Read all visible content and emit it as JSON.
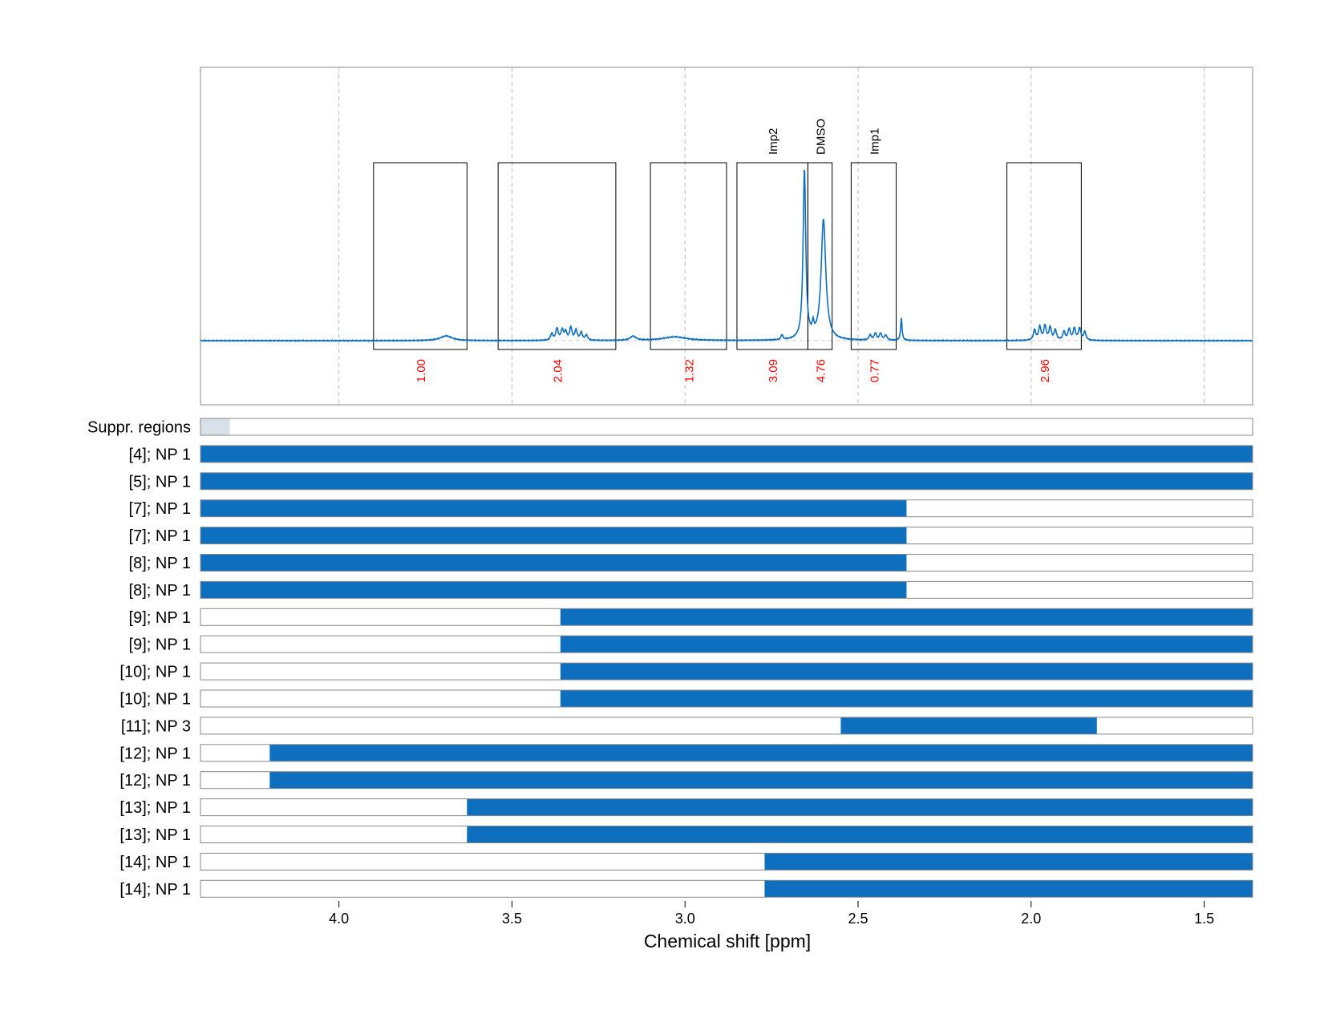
{
  "chart_data": {
    "type": "line",
    "xlabel": "Chemical shift [ppm]",
    "x_reversed": true,
    "xlim": [
      4.4,
      1.36
    ],
    "x_ticks": [
      4.0,
      3.5,
      3.0,
      2.5,
      2.0,
      1.5
    ],
    "x_tick_labels": [
      "4.0",
      "3.5",
      "3.0",
      "2.5",
      "2.0",
      "1.5"
    ],
    "grid": "vertical-dashed",
    "series_color": "#0f6fbf",
    "spectrum_peaks": [
      {
        "ppm": 3.69,
        "height": 0.028,
        "width": 0.02
      },
      {
        "ppm": 3.385,
        "height": 0.04,
        "width": 0.004
      },
      {
        "ppm": 3.37,
        "height": 0.07,
        "width": 0.004
      },
      {
        "ppm": 3.355,
        "height": 0.06,
        "width": 0.004
      },
      {
        "ppm": 3.345,
        "height": 0.05,
        "width": 0.004
      },
      {
        "ppm": 3.33,
        "height": 0.075,
        "width": 0.004
      },
      {
        "ppm": 3.315,
        "height": 0.06,
        "width": 0.004
      },
      {
        "ppm": 3.3,
        "height": 0.045,
        "width": 0.004
      },
      {
        "ppm": 3.285,
        "height": 0.03,
        "width": 0.004
      },
      {
        "ppm": 3.15,
        "height": 0.025,
        "width": 0.01
      },
      {
        "ppm": 3.03,
        "height": 0.022,
        "width": 0.04
      },
      {
        "ppm": 2.72,
        "height": 0.03,
        "width": 0.003
      },
      {
        "ppm": 2.655,
        "height": 1.0,
        "width": 0.0045
      },
      {
        "ppm": 2.63,
        "height": 0.06,
        "width": 0.003
      },
      {
        "ppm": 2.6,
        "height": 0.71,
        "width": 0.008
      },
      {
        "ppm": 2.465,
        "height": 0.03,
        "width": 0.004
      },
      {
        "ppm": 2.45,
        "height": 0.04,
        "width": 0.004
      },
      {
        "ppm": 2.435,
        "height": 0.04,
        "width": 0.004
      },
      {
        "ppm": 2.42,
        "height": 0.03,
        "width": 0.004
      },
      {
        "ppm": 2.375,
        "height": 0.13,
        "width": 0.0025
      },
      {
        "ppm": 1.99,
        "height": 0.06,
        "width": 0.004
      },
      {
        "ppm": 1.975,
        "height": 0.08,
        "width": 0.004
      },
      {
        "ppm": 1.96,
        "height": 0.085,
        "width": 0.004
      },
      {
        "ppm": 1.945,
        "height": 0.075,
        "width": 0.004
      },
      {
        "ppm": 1.93,
        "height": 0.06,
        "width": 0.004
      },
      {
        "ppm": 1.905,
        "height": 0.05,
        "width": 0.004
      },
      {
        "ppm": 1.89,
        "height": 0.065,
        "width": 0.004
      },
      {
        "ppm": 1.875,
        "height": 0.07,
        "width": 0.004
      },
      {
        "ppm": 1.86,
        "height": 0.07,
        "width": 0.004
      },
      {
        "ppm": 1.845,
        "height": 0.05,
        "width": 0.004
      }
    ],
    "integration_regions": [
      {
        "start": 3.9,
        "end": 3.63,
        "value": "1.00",
        "label": ""
      },
      {
        "start": 3.54,
        "end": 3.2,
        "value": "2.04",
        "label": ""
      },
      {
        "start": 3.1,
        "end": 2.88,
        "value": "1.32",
        "label": ""
      },
      {
        "start": 2.85,
        "end": 2.645,
        "value": "3.09",
        "label": "Imp2"
      },
      {
        "start": 2.645,
        "end": 2.575,
        "value": "4.76",
        "label": "DMSO"
      },
      {
        "start": 2.52,
        "end": 2.39,
        "value": "0.77",
        "label": "Imp1"
      },
      {
        "start": 2.07,
        "end": 1.855,
        "value": "2.96",
        "label": ""
      }
    ],
    "range_rows": [
      {
        "label": "Suppr. regions",
        "start": 4.4,
        "end": 4.315,
        "kind": "suppressed"
      },
      {
        "label": "[4]; NP 1",
        "start": 4.4,
        "end": 1.36,
        "kind": "range"
      },
      {
        "label": "[5]; NP 1",
        "start": 4.4,
        "end": 1.36,
        "kind": "range"
      },
      {
        "label": "[7]; NP 1",
        "start": 4.4,
        "end": 2.36,
        "kind": "range"
      },
      {
        "label": "[7]; NP 1",
        "start": 4.4,
        "end": 2.36,
        "kind": "range"
      },
      {
        "label": "[8]; NP 1",
        "start": 4.4,
        "end": 2.36,
        "kind": "range"
      },
      {
        "label": "[8]; NP 1",
        "start": 4.4,
        "end": 2.36,
        "kind": "range"
      },
      {
        "label": "[9]; NP 1",
        "start": 3.36,
        "end": 1.36,
        "kind": "range"
      },
      {
        "label": "[9]; NP 1",
        "start": 3.36,
        "end": 1.36,
        "kind": "range"
      },
      {
        "label": "[10]; NP 1",
        "start": 3.36,
        "end": 1.36,
        "kind": "range"
      },
      {
        "label": "[10]; NP 1",
        "start": 3.36,
        "end": 1.36,
        "kind": "range"
      },
      {
        "label": "[11]; NP 3",
        "start": 2.55,
        "end": 1.81,
        "kind": "range"
      },
      {
        "label": "[12]; NP 1",
        "start": 4.2,
        "end": 1.36,
        "kind": "range"
      },
      {
        "label": "[12]; NP 1",
        "start": 4.2,
        "end": 1.36,
        "kind": "range"
      },
      {
        "label": "[13]; NP 1",
        "start": 3.63,
        "end": 1.36,
        "kind": "range"
      },
      {
        "label": "[13]; NP 1",
        "start": 3.63,
        "end": 1.36,
        "kind": "range"
      },
      {
        "label": "[14]; NP 1",
        "start": 2.77,
        "end": 1.36,
        "kind": "range"
      },
      {
        "label": "[14]; NP 1",
        "start": 2.77,
        "end": 1.36,
        "kind": "range"
      }
    ]
  },
  "colors": {
    "integral_value": "#ff0000",
    "range_fill": "#0f6fbf",
    "suppressed_fill": "#d9e1e8",
    "frame": "#888888",
    "grid": "#bbbbbb"
  }
}
